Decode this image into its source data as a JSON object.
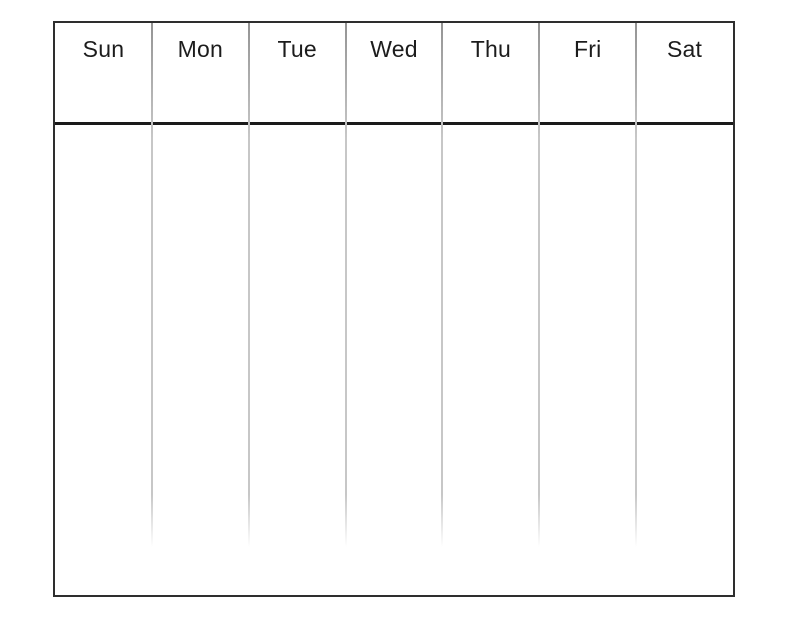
{
  "calendar": {
    "title": "blank-weekly-calendar",
    "day_headers": [
      "Sun",
      "Mon",
      "Tue",
      "Wed",
      "Thu",
      "Fri",
      "Sat"
    ]
  },
  "colors": {
    "background": "#ffffff",
    "border": "#2e2e2e",
    "separator": "#1a1a1a",
    "divider_top": "#949494",
    "divider": "#c7c7c7",
    "text": "#1c1c1c"
  }
}
